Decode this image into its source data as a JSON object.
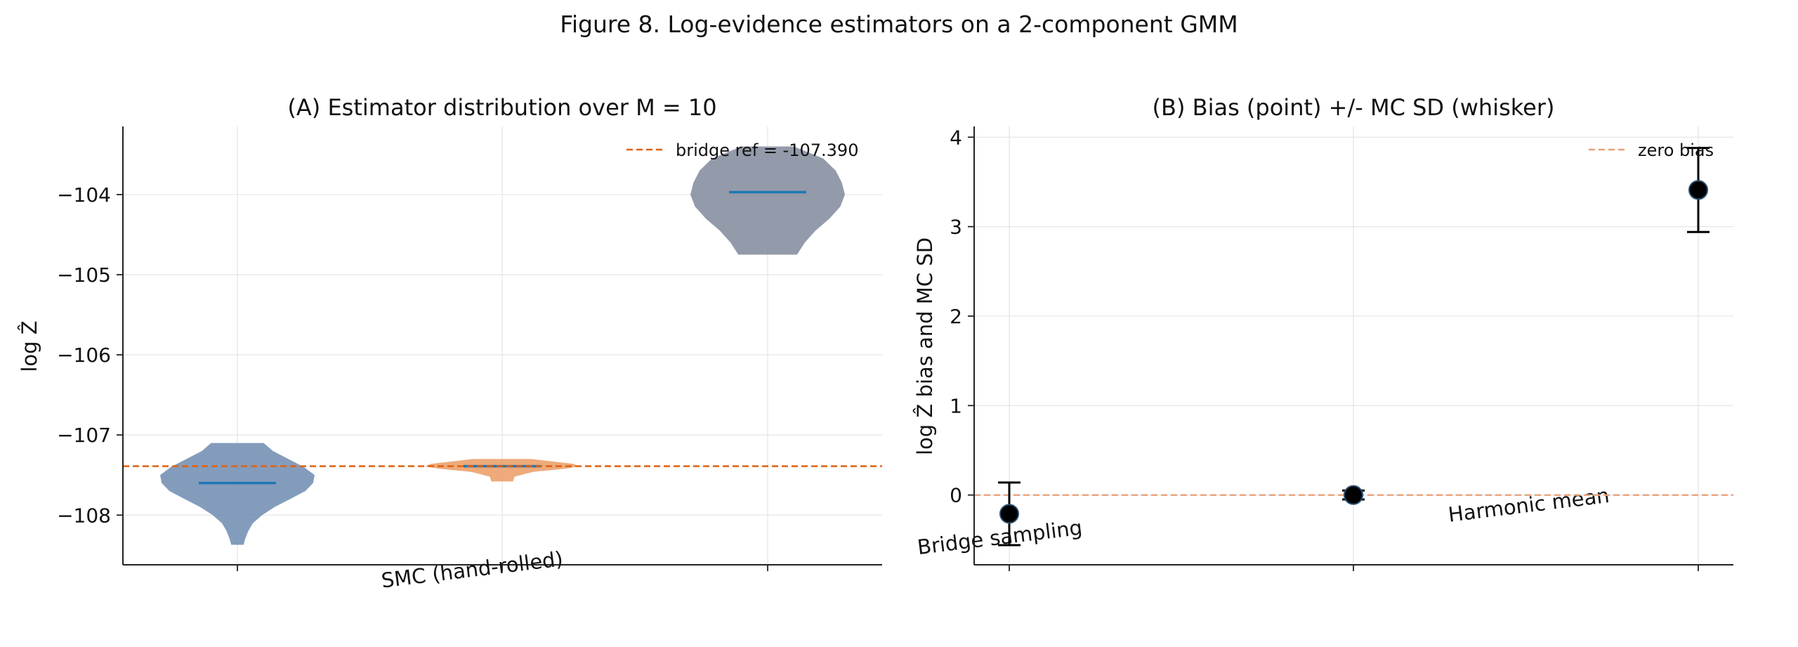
{
  "figure_title": "Figure 8. Log-evidence estimators on a 2-component GMM",
  "colors": {
    "smc": "#6f8bb0",
    "bridge": "#eb9b63",
    "harmonic": "#808a9b",
    "median": "#1f77b4",
    "reference": "#e0620f",
    "zero_line": "#e8a07a",
    "grid": "#e6e6e6",
    "marker_edge": "#2a4e6e"
  },
  "chart_data": [
    {
      "type": "violin",
      "title": "(A) Estimator distribution over M = 10",
      "ylabel": "log Ẑ",
      "xlabel": "",
      "categories": [
        "SMC (hand-rolled)",
        "Bridge sampling",
        "Harmonic mean"
      ],
      "ylim": [
        -108.62,
        -103.15
      ],
      "yticks": [
        -108,
        -107,
        -106,
        -105,
        -104
      ],
      "ytick_labels": [
        "−108",
        "−107",
        "−106",
        "−105",
        "−104"
      ],
      "grid": true,
      "legend": "top-right",
      "reference_line": {
        "label": "bridge ref = -107.390",
        "y": -107.39
      },
      "series": [
        {
          "category": "SMC (hand-rolled)",
          "min": -108.37,
          "max": -107.1,
          "median": -107.6,
          "profile": [
            [
              -108.37,
              0.08
            ],
            [
              -108.3,
              0.1
            ],
            [
              -108.2,
              0.14
            ],
            [
              -108.1,
              0.2
            ],
            [
              -108.0,
              0.32
            ],
            [
              -107.9,
              0.48
            ],
            [
              -107.8,
              0.68
            ],
            [
              -107.7,
              0.88
            ],
            [
              -107.6,
              0.98
            ],
            [
              -107.5,
              1.0
            ],
            [
              -107.4,
              0.86
            ],
            [
              -107.3,
              0.66
            ],
            [
              -107.2,
              0.46
            ],
            [
              -107.1,
              0.34
            ]
          ]
        },
        {
          "category": "Bridge sampling",
          "min": -107.58,
          "max": -107.3,
          "median": -107.39,
          "profile": [
            [
              -107.58,
              0.14
            ],
            [
              -107.52,
              0.16
            ],
            [
              -107.46,
              0.4
            ],
            [
              -107.42,
              0.82
            ],
            [
              -107.39,
              1.0
            ],
            [
              -107.36,
              0.92
            ],
            [
              -107.33,
              0.64
            ],
            [
              -107.3,
              0.38
            ]
          ]
        },
        {
          "category": "Harmonic mean",
          "min": -104.75,
          "max": -103.4,
          "median": -103.97,
          "profile": [
            [
              -104.75,
              0.38
            ],
            [
              -104.6,
              0.48
            ],
            [
              -104.45,
              0.62
            ],
            [
              -104.3,
              0.8
            ],
            [
              -104.15,
              0.94
            ],
            [
              -104.0,
              1.0
            ],
            [
              -103.85,
              0.96
            ],
            [
              -103.7,
              0.88
            ],
            [
              -103.55,
              0.72
            ],
            [
              -103.4,
              0.34
            ]
          ]
        }
      ]
    },
    {
      "type": "errorbar",
      "title": "(B) Bias (point) +/- MC SD (whisker)",
      "ylabel": "log Ẑ bias and MC SD",
      "xlabel": "",
      "categories": [
        "SMC (hand-rolled)",
        "Bridge sampling",
        "Harmonic mean"
      ],
      "ylim": [
        -0.78,
        4.12
      ],
      "yticks": [
        0,
        1,
        2,
        3,
        4
      ],
      "ytick_labels": [
        "0",
        "1",
        "2",
        "3",
        "4"
      ],
      "grid": true,
      "legend": "top-right",
      "reference_line": {
        "label": "zero bias",
        "y": 0
      },
      "points": [
        {
          "category": "SMC (hand-rolled)",
          "bias": -0.21,
          "sd": 0.35
        },
        {
          "category": "Bridge sampling",
          "bias": 0.0,
          "sd": 0.05
        },
        {
          "category": "Harmonic mean",
          "bias": 3.41,
          "sd": 0.47
        }
      ]
    }
  ]
}
